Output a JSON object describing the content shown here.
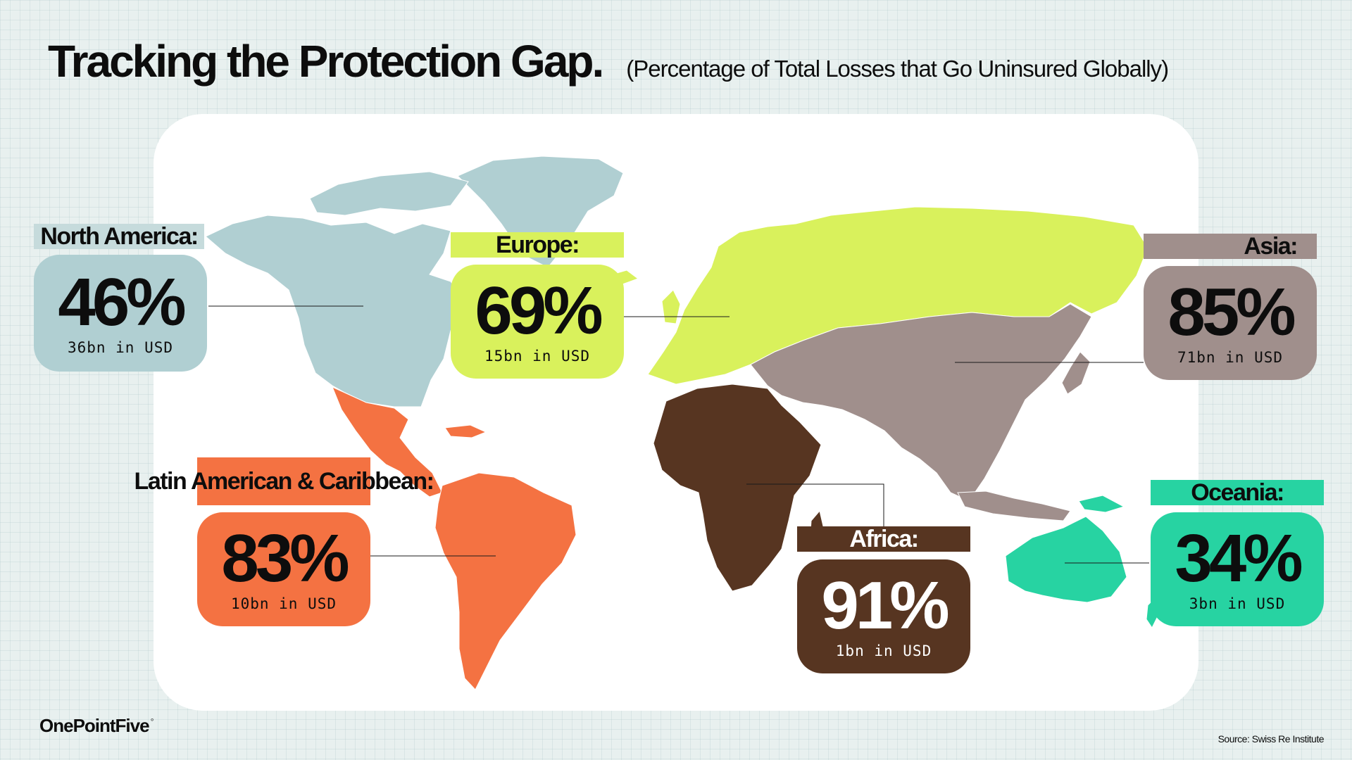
{
  "header": {
    "title": "Tracking the Protection Gap.",
    "subtitle": "(Percentage of Total Losses that Go Uninsured Globally)"
  },
  "regions": [
    {
      "id": "north-america",
      "label": "North America:",
      "percent": "46%",
      "usd": "36bn in USD",
      "color": "#b0cfd2"
    },
    {
      "id": "europe",
      "label": "Europe:",
      "percent": "69%",
      "usd": "15bn in USD",
      "color": "#d9f15c"
    },
    {
      "id": "asia",
      "label": "Asia:",
      "percent": "85%",
      "usd": "71bn in USD",
      "color": "#a08f8c"
    },
    {
      "id": "latin-america",
      "label": "Latin American & Caribbean:",
      "percent": "83%",
      "usd": "10bn in USD",
      "color": "#f47242"
    },
    {
      "id": "africa",
      "label": "Africa:",
      "percent": "91%",
      "usd": "1bn in USD",
      "color": "#573521"
    },
    {
      "id": "oceania",
      "label": "Oceania:",
      "percent": "34%",
      "usd": "3bn in USD",
      "color": "#27d3a2"
    }
  ],
  "logo": {
    "text": "OnePointFive",
    "mark": "◦"
  },
  "source": "Source: Swiss Re Institute"
}
